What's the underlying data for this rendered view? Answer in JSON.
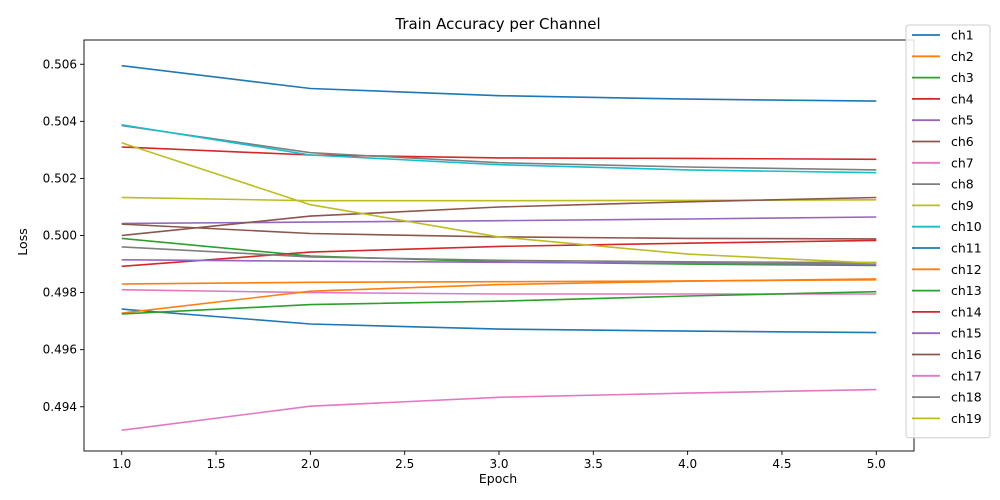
{
  "chart_data": {
    "type": "line",
    "title": "Train Accuracy per Channel",
    "xlabel": "Epoch",
    "ylabel": "Loss",
    "x": [
      1,
      2,
      3,
      4,
      5
    ],
    "xlim": [
      0.8,
      5.2
    ],
    "ylim": [
      0.49245,
      0.50685
    ],
    "xticks": [
      "1.0",
      "1.5",
      "2.0",
      "2.5",
      "3.0",
      "3.5",
      "4.0",
      "4.5",
      "5.0"
    ],
    "xtick_values": [
      1.0,
      1.5,
      2.0,
      2.5,
      3.0,
      3.5,
      4.0,
      4.5,
      5.0
    ],
    "yticks": [
      "0.494",
      "0.496",
      "0.498",
      "0.500",
      "0.502",
      "0.504",
      "0.506"
    ],
    "ytick_values": [
      0.494,
      0.496,
      0.498,
      0.5,
      0.502,
      0.504,
      0.506
    ],
    "grid": false,
    "legend_position": "right-outside-top",
    "series": [
      {
        "name": "ch1",
        "color": "#1f77b4",
        "values": [
          0.50595,
          0.50515,
          0.5049,
          0.50478,
          0.50471
        ]
      },
      {
        "name": "ch2",
        "color": "#ff7f0e",
        "values": [
          0.4983,
          0.49836,
          0.49838,
          0.49841,
          0.49845
        ]
      },
      {
        "name": "ch3",
        "color": "#2ca02c",
        "values": [
          0.4999,
          0.49928,
          0.49908,
          0.499,
          0.49895
        ]
      },
      {
        "name": "ch4",
        "color": "#d62728",
        "values": [
          0.5031,
          0.50282,
          0.50272,
          0.5027,
          0.50267
        ]
      },
      {
        "name": "ch5",
        "color": "#9467bd",
        "values": [
          0.50042,
          0.50047,
          0.50052,
          0.50058,
          0.50065
        ]
      },
      {
        "name": "ch6",
        "color": "#8c564b",
        "values": [
          0.5004,
          0.50007,
          0.49995,
          0.4999,
          0.49988
        ]
      },
      {
        "name": "ch7",
        "color": "#e377c2",
        "values": [
          0.4981,
          0.498,
          0.49795,
          0.49795,
          0.49795
        ]
      },
      {
        "name": "ch8",
        "color": "#7f7f7f",
        "values": [
          0.50385,
          0.5029,
          0.50255,
          0.5024,
          0.5023
        ]
      },
      {
        "name": "ch9",
        "color": "#bcbd22",
        "values": [
          0.50133,
          0.50122,
          0.50122,
          0.50123,
          0.50125
        ]
      },
      {
        "name": "ch10",
        "color": "#17becf",
        "values": [
          0.50388,
          0.50282,
          0.50248,
          0.5023,
          0.5022
        ]
      },
      {
        "name": "ch11",
        "color": "#1f77b4",
        "values": [
          0.49742,
          0.4969,
          0.49672,
          0.49665,
          0.4966
        ]
      },
      {
        "name": "ch12",
        "color": "#ff7f0e",
        "values": [
          0.49728,
          0.49805,
          0.49828,
          0.4984,
          0.49848
        ]
      },
      {
        "name": "ch13",
        "color": "#2ca02c",
        "values": [
          0.49725,
          0.49758,
          0.4977,
          0.49788,
          0.49803
        ]
      },
      {
        "name": "ch14",
        "color": "#d62728",
        "values": [
          0.49892,
          0.49942,
          0.49962,
          0.49973,
          0.49983
        ]
      },
      {
        "name": "ch15",
        "color": "#9467bd",
        "values": [
          0.49915,
          0.4991,
          0.49906,
          0.49903,
          0.499
        ]
      },
      {
        "name": "ch16",
        "color": "#8c564b",
        "values": [
          0.5,
          0.50068,
          0.501,
          0.50118,
          0.50133
        ]
      },
      {
        "name": "ch17",
        "color": "#e377c2",
        "values": [
          0.49318,
          0.49402,
          0.49433,
          0.49448,
          0.4946
        ]
      },
      {
        "name": "ch18",
        "color": "#7f7f7f",
        "values": [
          0.4996,
          0.49925,
          0.49913,
          0.49908,
          0.49905
        ]
      },
      {
        "name": "ch19",
        "color": "#bcbd22",
        "values": [
          0.50325,
          0.50108,
          0.49995,
          0.49935,
          0.49903
        ]
      }
    ]
  }
}
